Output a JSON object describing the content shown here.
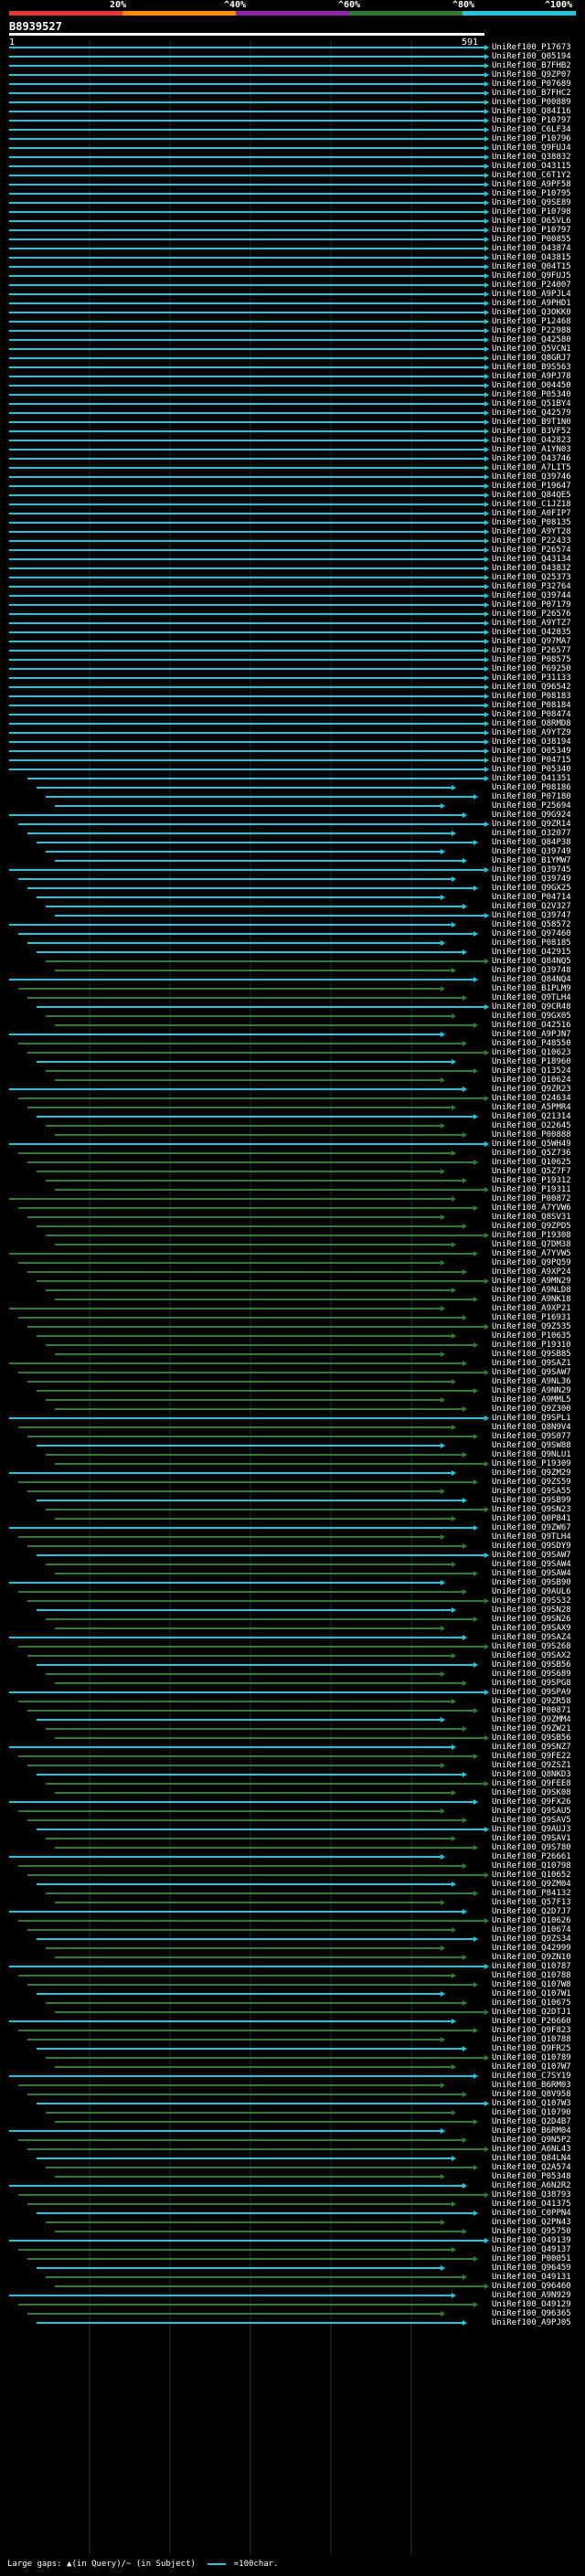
{
  "query": {
    "id": "B8939527",
    "start": "1",
    "end": "591"
  },
  "identity_scale": {
    "ticks": [
      "20%",
      "^40%",
      "^60%",
      "^80%",
      "^100%"
    ],
    "colors": [
      "#e53935",
      "#ff8f00",
      "#8e24aa",
      "#2e7d32",
      "#26c6da"
    ]
  },
  "footer": {
    "large_gaps": "Large gaps: ▲(in Query)/~ (in Subject)",
    "scale_note": "=100char."
  },
  "hits": [
    "UniRef100_P17673",
    "UniRef100_Q05194",
    "UniRef100_B7FHB2",
    "UniRef100_Q9ZP07",
    "UniRef100_P07689",
    "UniRef100_B7FHC2",
    "UniRef100_P00889",
    "UniRef100_Q84I16",
    "UniRef100_P10797",
    "UniRef100_C6LF34",
    "UniRef100_P10796",
    "UniRef100_Q9FUJ4",
    "UniRef100_Q38832",
    "UniRef100_O43115",
    "UniRef100_C6T1Y2",
    "UniRef100_A9PF58",
    "UniRef100_P10795",
    "UniRef100_Q9SE89",
    "UniRef100_P10798",
    "UniRef100_O65VL6",
    "UniRef100_P10797",
    "UniRef100_P00855",
    "UniRef100_O43874",
    "UniRef100_O43815",
    "UniRef100_Q04T15",
    "UniRef100_Q9FUJ5",
    "UniRef100_P24007",
    "UniRef100_A9PJL4",
    "UniRef100_A9PHD1",
    "UniRef100_Q3OKK0",
    "UniRef100_P12468",
    "UniRef100_P22988",
    "UniRef100_Q42580",
    "UniRef100_Q5VCN1",
    "UniRef100_Q8GRJ7",
    "UniRef100_B9S563",
    "UniRef100_A9PJ78",
    "UniRef100_O04450",
    "UniRef100_P05340",
    "UniRef100_Q51BY4",
    "UniRef100_Q42579",
    "UniRef100_B9T1N0",
    "UniRef100_B3VF52",
    "UniRef100_O42823",
    "UniRef100_A1YN03",
    "UniRef100_O43746",
    "UniRef100_A7LIT5",
    "UniRef100_Q39746",
    "UniRef100_P19647",
    "UniRef100_Q84QE5",
    "UniRef100_C1JZ18",
    "UniRef100_A0FIP7",
    "UniRef100_P08135",
    "UniRef100_A9YT28",
    "UniRef100_P22433",
    "UniRef100_P26574",
    "UniRef100_Q43134",
    "UniRef100_O43832",
    "UniRef100_Q25373",
    "UniRef100_P32764",
    "UniRef100_Q39744",
    "UniRef100_P07179",
    "UniRef100_P26576",
    "UniRef100_A9YTZ7",
    "UniRef100_O42835",
    "UniRef100_Q97MA7",
    "UniRef100_P26577",
    "UniRef100_P08575",
    "UniRef100_P69250",
    "UniRef100_P31133",
    "UniRef100_Q96542",
    "UniRef100_P08183",
    "UniRef100_P08184",
    "UniRef100_P08474",
    "UniRef100_O8RMD8",
    "UniRef100_A9YTZ9",
    "UniRef100_O38194",
    "UniRef100_O05349",
    "UniRef100_P04715",
    "UniRef100_P05340",
    "UniRef100_O41351",
    "UniRef100_P08186",
    "UniRef100_P07180",
    "UniRef100_P25694",
    "UniRef100_Q9G924",
    "UniRef100_Q9ZR14",
    "UniRef100_O32077",
    "UniRef100_Q84P38",
    "UniRef100_Q39749",
    "UniRef100_B1YMW7",
    "UniRef100_Q39745",
    "UniRef100_Q39749",
    "UniRef100_Q9GX25",
    "UniRef100_P04714",
    "UniRef100_Q2V327",
    "UniRef100_Q39747",
    "UniRef100_Q58572",
    "UniRef100_Q97460",
    "UniRef100_P08185",
    "UniRef100_O42915",
    "UniRef100_Q84NQ5",
    "UniRef100_Q39748",
    "UniRef100_Q84NQ4",
    "UniRef100_B1PLM9",
    "UniRef100_Q9TLH4",
    "UniRef100_Q9CR48",
    "UniRef100_Q9GX05",
    "UniRef100_O42516",
    "UniRef100_A9PJN7",
    "UniRef100_P48550",
    "UniRef100_Q10623",
    "UniRef100_P18960",
    "UniRef100_Q13524",
    "UniRef100_Q10624",
    "UniRef100_Q9ZR23",
    "UniRef100_O24634",
    "UniRef100_A5PMR4",
    "UniRef100_Q21314",
    "UniRef100_O22645",
    "UniRef100_P00888",
    "UniRef100_Q5WH49",
    "UniRef100_Q5Z736",
    "UniRef100_Q10625",
    "UniRef100_Q5Z7F7",
    "UniRef100_P19312",
    "UniRef100_P19311",
    "UniRef100_P00872",
    "UniRef100_A7YVW6",
    "UniRef100_Q8SV31",
    "UniRef100_Q9ZPD5",
    "UniRef100_P19308",
    "UniRef100_Q7DM38",
    "UniRef100_A7YVW5",
    "UniRef100_Q9PQ59",
    "UniRef100_A9XP24",
    "UniRef100_A9MN29",
    "UniRef100_A9NLD8",
    "UniRef100_A9NK18",
    "UniRef100_A9XP21",
    "UniRef100_P16931",
    "UniRef100_Q9Z535",
    "UniRef100_P10635",
    "UniRef100_P19310",
    "UniRef100_Q9SB85",
    "UniRef100_Q9SAZ1",
    "UniRef100_Q9SAW7",
    "UniRef100_A9NL36",
    "UniRef100_A9NN29",
    "UniRef100_A9MML5",
    "UniRef100_Q9Z300",
    "UniRef100_Q9SPL1",
    "UniRef100_Q8N9V4",
    "UniRef100_Q9S077",
    "UniRef100_Q9SW88",
    "UniRef100_Q9NLU1",
    "UniRef100_P19309",
    "UniRef100_Q9ZM29",
    "UniRef100_Q9ZS59",
    "UniRef100_Q9SA55",
    "UniRef100_Q9SB99",
    "UniRef100_Q9SN23",
    "UniRef100_Q0P841",
    "UniRef100_Q9ZW67",
    "UniRef100_Q9TLH4",
    "UniRef100_Q9SDY9",
    "UniRef100_Q9SAW7",
    "UniRef100_Q9SAW4",
    "UniRef100_Q9SAW4",
    "UniRef100_Q9SB90",
    "UniRef100_Q9AUL6",
    "UniRef100_Q9SS32",
    "UniRef100_Q9SN28",
    "UniRef100_Q9SN26",
    "UniRef100_Q9SAX9",
    "UniRef100_Q9SAZ4",
    "UniRef100_Q9S268",
    "UniRef100_Q9SAX2",
    "UniRef100_Q9SB56",
    "UniRef100_Q9S689",
    "UniRef100_Q9SPG8",
    "UniRef100_Q9SPA9",
    "UniRef100_Q9ZR58",
    "UniRef100_P00871",
    "UniRef100_Q9ZMM4",
    "UniRef100_Q9ZW21",
    "UniRef100_Q9SB56",
    "UniRef100_Q9SNZ7",
    "UniRef100_Q9FE22",
    "UniRef100_Q9ZSZ1",
    "UniRef100_Q8NKD3",
    "UniRef100_Q9FEE8",
    "UniRef100_Q9SK08",
    "UniRef100_Q9FX26",
    "UniRef100_Q9SAU5",
    "UniRef100_Q9SAV5",
    "UniRef100_Q9AUJ3",
    "UniRef100_Q9SAV1",
    "UniRef100_Q9S780",
    "UniRef100_P26661",
    "UniRef100_Q10798",
    "UniRef100_Q10652",
    "UniRef100_Q9ZM04",
    "UniRef100_P84132",
    "UniRef100_Q57F13",
    "UniRef100_Q2D7J7",
    "UniRef100_Q10626",
    "UniRef100_Q10674",
    "UniRef100_Q9ZS34",
    "UniRef100_Q42999",
    "UniRef100_Q9ZN10",
    "UniRef100_Q10787",
    "UniRef100_Q10788",
    "UniRef100_Q107W8",
    "UniRef100_Q107W1",
    "UniRef100_Q10675",
    "UniRef100_Q2DTJ1",
    "UniRef100_P26660",
    "UniRef100_Q9F823",
    "UniRef100_Q10788",
    "UniRef100_Q9FR25",
    "UniRef100_Q10789",
    "UniRef100_Q107W7",
    "UniRef100_C7SY19",
    "UniRef100_B6RM03",
    "UniRef100_Q8V958",
    "UniRef100_Q107W3",
    "UniRef100_Q10790",
    "UniRef100_Q2D4B7",
    "UniRef100_B6RM04",
    "UniRef100_Q9N5P2",
    "UniRef100_A6NL43",
    "UniRef100_Q84LN4",
    "UniRef100_Q2A574",
    "UniRef100_P05348",
    "UniRef100_A6N2R2",
    "UniRef100_Q38793",
    "UniRef100_O41375",
    "UniRef100_C0PPN4",
    "UniRef100_Q2PN43",
    "UniRef100_Q95750",
    "UniRef100_O49139",
    "UniRef100_Q49137",
    "UniRef100_P00051",
    "UniRef100_Q96459",
    "UniRef100_O49131",
    "UniRef100_Q96460",
    "UniRef100_A9N929",
    "UniRef100_O49129",
    "UniRef100_Q96365",
    "UniRef100_A9PJ05"
  ]
}
